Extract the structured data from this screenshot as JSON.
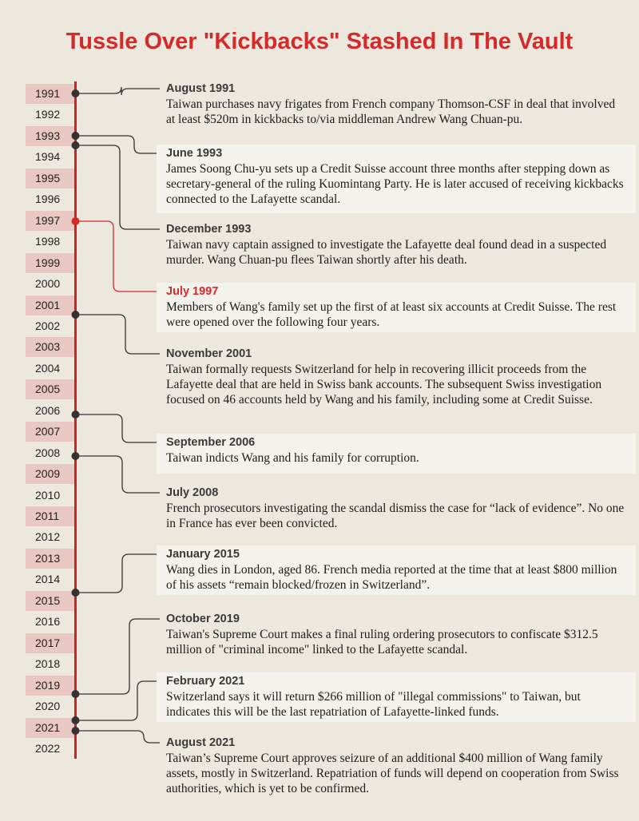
{
  "title": "Tussle Over \"Kickbacks\" Stashed In The Vault",
  "years": [
    "1991",
    "1992",
    "1993",
    "1994",
    "1995",
    "1996",
    "1997",
    "1998",
    "1999",
    "2000",
    "2001",
    "2002",
    "2003",
    "2004",
    "2005",
    "2006",
    "2007",
    "2008",
    "2009",
    "2010",
    "2011",
    "2012",
    "2013",
    "2014",
    "2015",
    "2016",
    "2017",
    "2018",
    "2019",
    "2020",
    "2021",
    "2022"
  ],
  "events": [
    {
      "heading": "August 1991",
      "text": "Taiwan purchases navy frigates from French company Thomson-CSF in deal that involved at least $520m in kickbacks to/via middleman Andrew Wang Chuan-pu."
    },
    {
      "heading": "June 1993",
      "text": "James Soong Chu-yu sets up a Credit Suisse account three months after stepping down as secretary-general of the ruling Kuomintang Party. He is later accused of receiving kickbacks connected to the Lafayette scandal."
    },
    {
      "heading": "December 1993",
      "text": "Taiwan navy captain assigned to investigate the Lafayette deal found dead in a suspected murder. Wang Chuan-pu flees Taiwan shortly after his death."
    },
    {
      "heading": "July 1997",
      "text": "Members of Wang's family set up the first of at least six accounts at Credit Suisse. The rest were opened over the following four years."
    },
    {
      "heading": "November 2001",
      "text": "Taiwan formally requests Switzerland for help in recovering illicit proceeds from the Lafayette deal that are held in Swiss bank accounts. The subsequent Swiss investigation focused on 46 accounts held by Wang and his family, including some at Credit Suisse."
    },
    {
      "heading": "September 2006",
      "text": "Taiwan indicts Wang and his family for corruption."
    },
    {
      "heading": "July 2008",
      "text": "French prosecutors investigating the scandal dismiss the case for “lack of evidence”. No one in France has ever been convicted."
    },
    {
      "heading": "January 2015",
      "text": "Wang dies in London, aged 86. French media reported at the time that at least $800 million of his assets “remain blocked/frozen in Switzerland”."
    },
    {
      "heading": "October 2019",
      "text": "Taiwan's Supreme Court makes a final ruling ordering prosecutors to confiscate $312.5 million of \"criminal income\" linked to the Lafayette scandal."
    },
    {
      "heading": "February 2021",
      "text": "Switzerland says it will return $266 million of \"illegal commissions\" to Taiwan, but indicates this will be the last repatriation of Lafayette-linked funds."
    },
    {
      "heading": "August 2021",
      "text": "Taiwan’s Supreme Court approves seizure of an additional $400 million of Wang family assets, mostly in Switzerland. Repatriation of funds will depend on cooperation from Swiss authorities, which is yet to be confirmed."
    }
  ],
  "colors": {
    "accent": "#d42a2a",
    "axis": "#cc2222",
    "connector": "#333333",
    "background": "#ece8de",
    "panel": "#f4f2ec",
    "year_band": "#e9c7c2"
  }
}
